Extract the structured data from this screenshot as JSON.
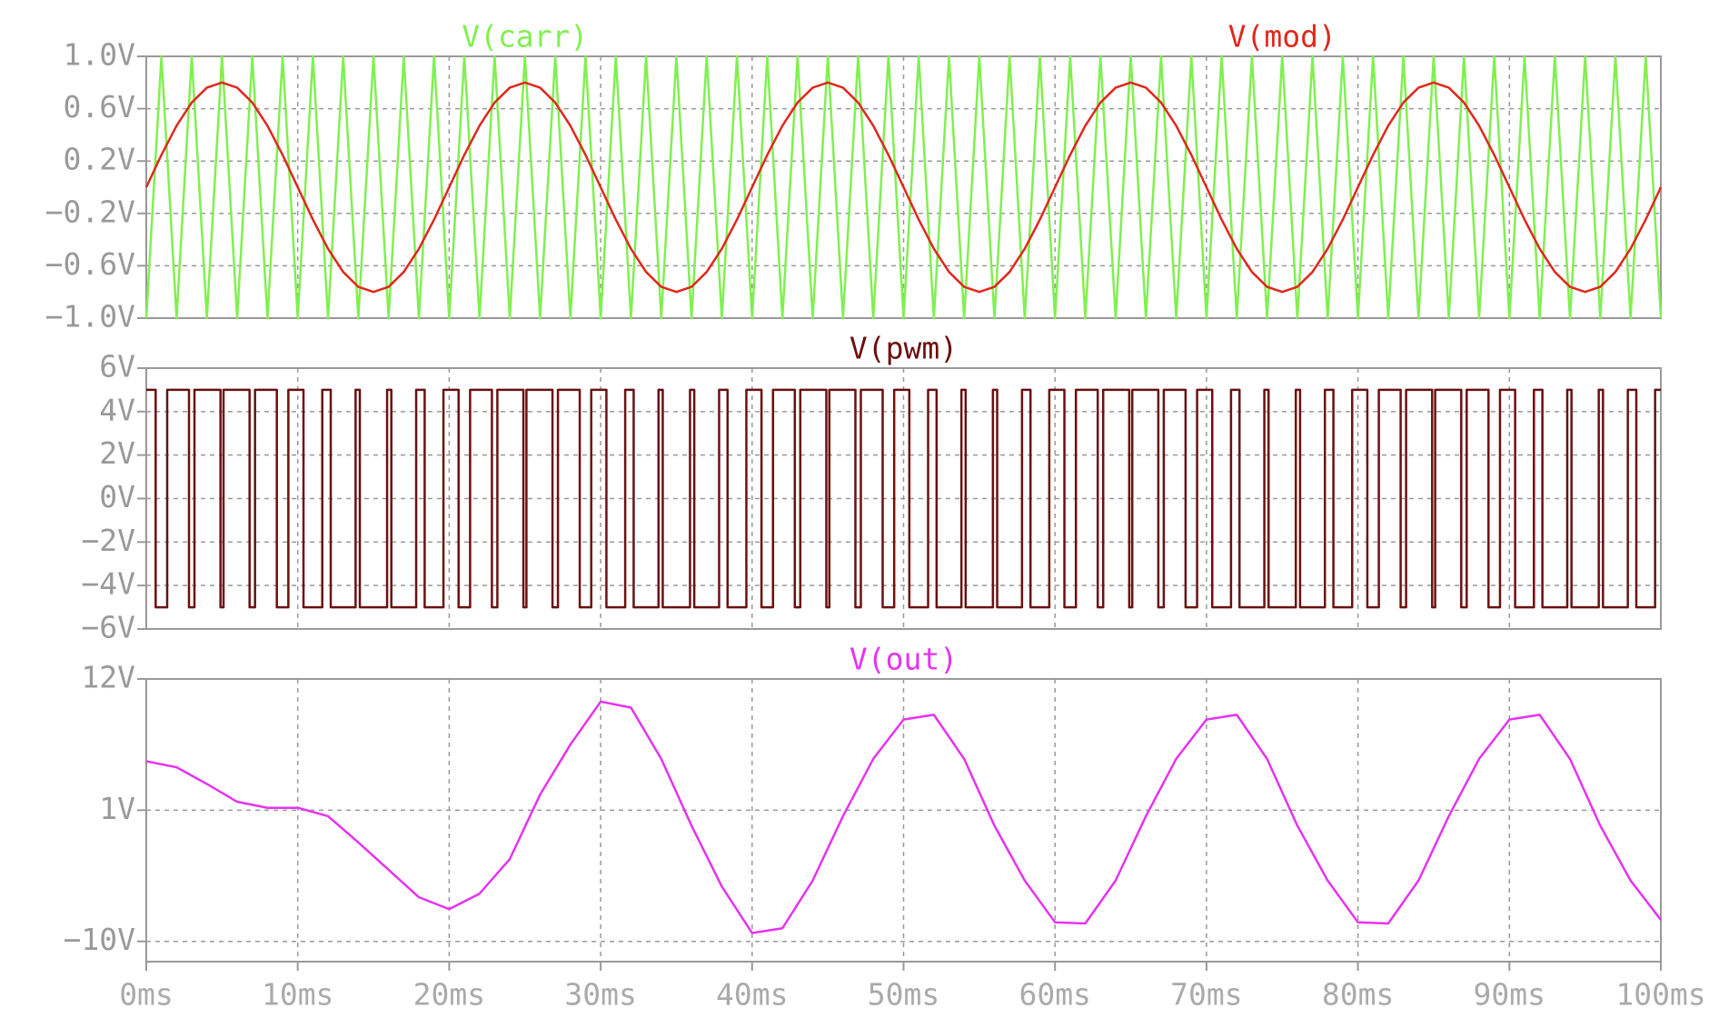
{
  "chart_data": [
    {
      "type": "line",
      "xlim": [
        0,
        100
      ],
      "ylim": [
        -1,
        1
      ],
      "yticks": [
        {
          "value": -1,
          "label": "−1.0V"
        },
        {
          "value": -0.6,
          "label": "−0.6V"
        },
        {
          "value": -0.2,
          "label": "−0.2V"
        },
        {
          "value": 0.2,
          "label": "0.2V"
        },
        {
          "value": 0.6,
          "label": "0.6V"
        },
        {
          "value": 1,
          "label": "1.0V"
        }
      ],
      "x": [
        0,
        1,
        2,
        3,
        4,
        5,
        6,
        7,
        8,
        9,
        10,
        11,
        12,
        13,
        14,
        15,
        16,
        17,
        18,
        19,
        20,
        21,
        22,
        23,
        24,
        25,
        26,
        27,
        28,
        29,
        30,
        31,
        32,
        33,
        34,
        35,
        36,
        37,
        38,
        39,
        40,
        41,
        42,
        43,
        44,
        45,
        46,
        47,
        48,
        49,
        50,
        51,
        52,
        53,
        54,
        55,
        56,
        57,
        58,
        59,
        60,
        61,
        62,
        63,
        64,
        65,
        66,
        67,
        68,
        69,
        70,
        71,
        72,
        73,
        74,
        75,
        76,
        77,
        78,
        79,
        80,
        81,
        82,
        83,
        84,
        85,
        86,
        87,
        88,
        89,
        90,
        91,
        92,
        93,
        94,
        95,
        96,
        97,
        98,
        99,
        100
      ],
      "series": [
        {
          "name": "V(carr)",
          "color": "#80f050",
          "values": [
            -1,
            1,
            -1,
            1,
            -1,
            1,
            -1,
            1,
            -1,
            1,
            -1,
            1,
            -1,
            1,
            -1,
            1,
            -1,
            1,
            -1,
            1,
            -1,
            1,
            -1,
            1,
            -1,
            1,
            -1,
            1,
            -1,
            1,
            -1,
            1,
            -1,
            1,
            -1,
            1,
            -1,
            1,
            -1,
            1,
            -1,
            1,
            -1,
            1,
            -1,
            1,
            -1,
            1,
            -1,
            1,
            -1,
            1,
            -1,
            1,
            -1,
            1,
            -1,
            1,
            -1,
            1,
            -1,
            1,
            -1,
            1,
            -1,
            1,
            -1,
            1,
            -1,
            1,
            -1,
            1,
            -1,
            1,
            -1,
            1,
            -1,
            1,
            -1,
            1,
            -1,
            1,
            -1,
            1,
            -1,
            1,
            -1,
            1,
            -1,
            1,
            -1,
            1,
            -1,
            1,
            -1,
            1,
            -1,
            1,
            -1,
            1,
            -1
          ]
        },
        {
          "name": "V(mod)",
          "color": "#e0281c",
          "values": [
            0,
            0.2472,
            0.4702,
            0.6472,
            0.7608,
            0.8,
            0.7608,
            0.6472,
            0.4702,
            0.2472,
            0,
            -0.2472,
            -0.4702,
            -0.6472,
            -0.7608,
            -0.8,
            -0.7608,
            -0.6472,
            -0.4702,
            -0.2472,
            0,
            0.2472,
            0.4702,
            0.6472,
            0.7608,
            0.8,
            0.7608,
            0.6472,
            0.4702,
            0.2472,
            0,
            -0.2472,
            -0.4702,
            -0.6472,
            -0.7608,
            -0.8,
            -0.7608,
            -0.6472,
            -0.4702,
            -0.2472,
            0,
            0.2472,
            0.4702,
            0.6472,
            0.7608,
            0.8,
            0.7608,
            0.6472,
            0.4702,
            0.2472,
            0,
            -0.2472,
            -0.4702,
            -0.6472,
            -0.7608,
            -0.8,
            -0.7608,
            -0.6472,
            -0.4702,
            -0.2472,
            0,
            0.2472,
            0.4702,
            0.6472,
            0.7608,
            0.8,
            0.7608,
            0.6472,
            0.4702,
            0.2472,
            0,
            -0.2472,
            -0.4702,
            -0.6472,
            -0.7608,
            -0.8,
            -0.7608,
            -0.6472,
            -0.4702,
            -0.2472,
            0,
            0.2472,
            0.4702,
            0.6472,
            0.7608,
            0.8,
            0.7608,
            0.6472,
            0.4702,
            0.2472,
            0,
            -0.2472,
            -0.4702,
            -0.6472,
            -0.7608,
            -0.8,
            -0.7608,
            -0.6472,
            -0.4702,
            -0.2472,
            0
          ]
        }
      ]
    },
    {
      "type": "step",
      "xlim": [
        0,
        100
      ],
      "ylim": [
        -6,
        6
      ],
      "yticks": [
        {
          "value": -6,
          "label": "−6V"
        },
        {
          "value": -4,
          "label": "−4V"
        },
        {
          "value": -2,
          "label": "−2V"
        },
        {
          "value": 0,
          "label": "0V"
        },
        {
          "value": 2,
          "label": "2V"
        },
        {
          "value": 4,
          "label": "4V"
        },
        {
          "value": 6,
          "label": "6V"
        }
      ],
      "x": [
        0,
        0.62,
        1.38,
        2.82,
        3.18,
        4.9,
        5.1,
        6.82,
        7.18,
        8.62,
        9.38,
        10.38,
        11.62,
        12.18,
        13.82,
        14.1,
        15.9,
        16.18,
        17.82,
        18.38,
        19.62,
        20.62,
        21.38,
        22.82,
        23.18,
        24.9,
        25.1,
        26.82,
        27.18,
        28.62,
        29.38,
        30.38,
        31.62,
        32.18,
        33.82,
        34.1,
        35.9,
        36.18,
        37.82,
        38.38,
        39.62,
        40.62,
        41.38,
        42.82,
        43.18,
        44.9,
        45.1,
        46.82,
        47.18,
        48.62,
        49.38,
        50.38,
        51.62,
        52.18,
        53.82,
        54.1,
        55.9,
        56.18,
        57.82,
        58.38,
        59.62,
        60.62,
        61.38,
        62.82,
        63.18,
        64.9,
        65.1,
        66.82,
        67.18,
        68.62,
        69.38,
        70.38,
        71.62,
        72.18,
        73.82,
        74.1,
        75.9,
        76.18,
        77.82,
        78.38,
        79.62,
        80.62,
        81.38,
        82.82,
        83.18,
        84.9,
        85.1,
        86.82,
        87.18,
        88.62,
        89.38,
        90.38,
        91.62,
        92.18,
        93.82,
        94.1,
        95.9,
        96.18,
        97.82,
        98.38,
        99.62
      ],
      "series": [
        {
          "name": "V(pwm)",
          "color": "#6b1010",
          "values": [
            5,
            -5,
            5,
            -5,
            5,
            -5,
            5,
            -5,
            5,
            -5,
            5,
            -5,
            5,
            -5,
            5,
            -5,
            5,
            -5,
            5,
            -5,
            5,
            -5,
            5,
            -5,
            5,
            -5,
            5,
            -5,
            5,
            -5,
            5,
            -5,
            5,
            -5,
            5,
            -5,
            5,
            -5,
            5,
            -5,
            5,
            -5,
            5,
            -5,
            5,
            -5,
            5,
            -5,
            5,
            -5,
            5,
            -5,
            5,
            -5,
            5,
            -5,
            5,
            -5,
            5,
            -5,
            5,
            -5,
            5,
            -5,
            5,
            -5,
            5,
            -5,
            5,
            -5,
            5,
            -5,
            5,
            -5,
            5,
            -5,
            5,
            -5,
            5,
            -5,
            5,
            -5,
            5,
            -5,
            5,
            -5,
            5,
            -5,
            5,
            -5,
            5,
            -5,
            5,
            -5,
            5,
            -5,
            5,
            -5,
            5,
            -5,
            5
          ]
        }
      ]
    },
    {
      "type": "line",
      "xlim": [
        0,
        100
      ],
      "ylim": [
        -11.7,
        12
      ],
      "yticks": [
        {
          "value": -10,
          "label": "−10V"
        },
        {
          "value": 1,
          "label": "1V"
        },
        {
          "value": 12,
          "label": "12V"
        }
      ],
      "xticks": [
        {
          "value": 0,
          "label": "0ms"
        },
        {
          "value": 10,
          "label": "10ms"
        },
        {
          "value": 20,
          "label": "20ms"
        },
        {
          "value": 30,
          "label": "30ms"
        },
        {
          "value": 40,
          "label": "40ms"
        },
        {
          "value": 50,
          "label": "50ms"
        },
        {
          "value": 60,
          "label": "60ms"
        },
        {
          "value": 70,
          "label": "70ms"
        },
        {
          "value": 80,
          "label": "80ms"
        },
        {
          "value": 90,
          "label": "90ms"
        },
        {
          "value": 100,
          "label": "100ms"
        }
      ],
      "x": [
        0,
        2,
        4,
        6,
        8,
        10,
        12,
        14,
        16,
        18,
        20,
        22,
        24,
        26,
        28,
        30,
        32,
        34,
        36,
        38,
        40,
        42,
        44,
        46,
        48,
        50,
        52,
        54,
        56,
        58,
        60,
        62,
        64,
        66,
        68,
        70,
        72,
        74,
        76,
        78,
        80,
        82,
        84,
        86,
        88,
        90,
        92,
        94,
        96,
        98,
        100
      ],
      "series": [
        {
          "name": "V(out)",
          "color": "#e633f0",
          "values": [
            5.1,
            4.6,
            3.2,
            1.7,
            1.2,
            1.2,
            0.5,
            -1.7,
            -4.0,
            -6.3,
            -7.3,
            -6.0,
            -3.1,
            2.3,
            6.5,
            10.1,
            9.6,
            5.3,
            -0.3,
            -5.4,
            -9.3,
            -8.9,
            -4.9,
            0.5,
            5.3,
            8.6,
            9.0,
            5.3,
            -0.3,
            -4.9,
            -8.4,
            -8.5,
            -4.9,
            0.5,
            5.3,
            8.6,
            9.0,
            5.3,
            -0.3,
            -4.9,
            -8.4,
            -8.5,
            -4.9,
            0.5,
            5.3,
            8.6,
            9.0,
            5.3,
            -0.3,
            -4.9,
            -8.2
          ]
        }
      ]
    }
  ]
}
